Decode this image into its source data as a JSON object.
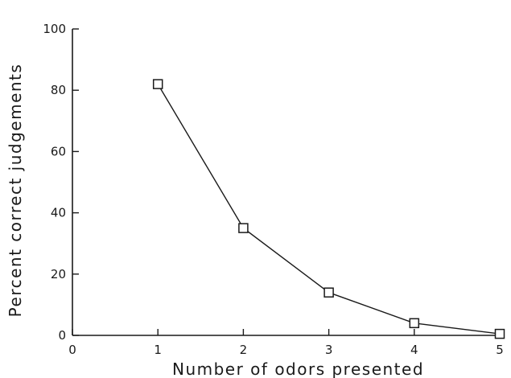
{
  "chart_data": {
    "type": "line",
    "title": "",
    "xlabel": "Number of odors presented",
    "ylabel": "Percent correct judgements",
    "xlim": [
      0,
      5
    ],
    "ylim": [
      0,
      100
    ],
    "x_ticks": [
      "0",
      "1",
      "2",
      "3",
      "4",
      "5"
    ],
    "y_ticks": [
      "0",
      "20",
      "40",
      "60",
      "80",
      "100"
    ],
    "grid": false,
    "legend": "none",
    "series": [
      {
        "marker": "square",
        "color": "#1a1a1a",
        "x": [
          1,
          2,
          3,
          4,
          5
        ],
        "y": [
          82,
          35,
          14,
          4,
          0.5
        ]
      }
    ]
  }
}
